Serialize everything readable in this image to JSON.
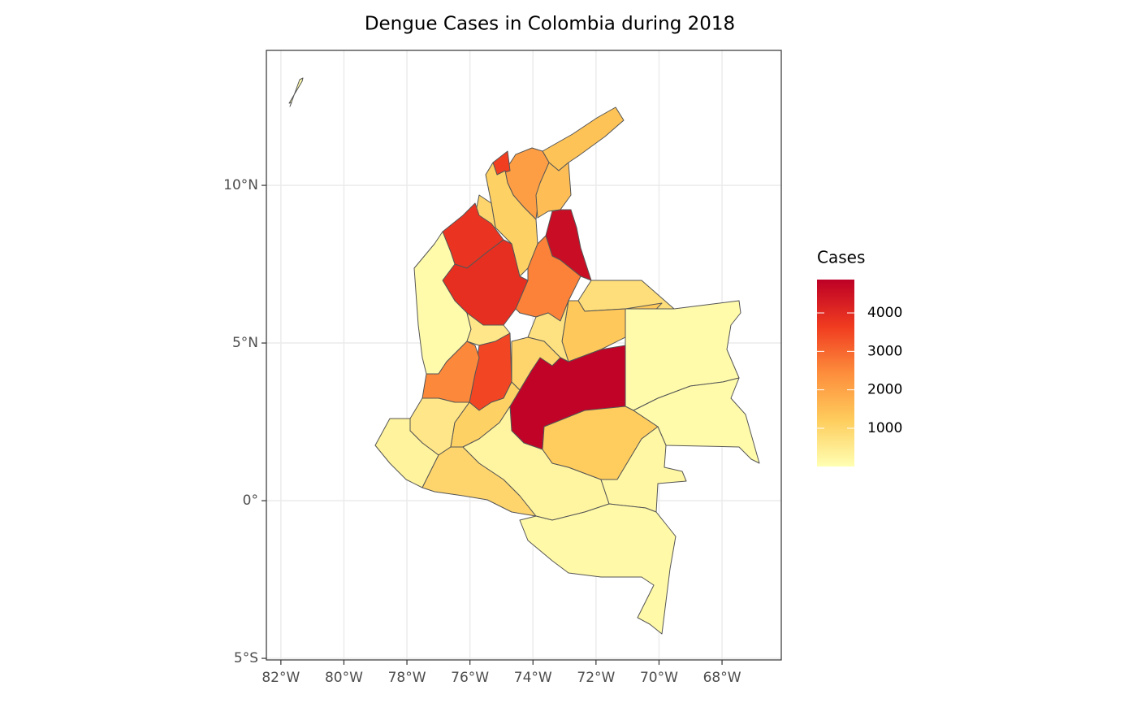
{
  "chart_data": {
    "type": "choropleth",
    "title": "Dengue Cases in Colombia during 2018",
    "xlim": [
      -82.46,
      -66.12
    ],
    "ylim": [
      -5.05,
      14.28
    ],
    "xticks": [
      {
        "value": -82,
        "label": "82°W"
      },
      {
        "value": -80,
        "label": "80°W"
      },
      {
        "value": -78,
        "label": "78°W"
      },
      {
        "value": -76,
        "label": "76°W"
      },
      {
        "value": -74,
        "label": "74°W"
      },
      {
        "value": -72,
        "label": "72°W"
      },
      {
        "value": -70,
        "label": "70°W"
      },
      {
        "value": -68,
        "label": "68°W"
      }
    ],
    "yticks": [
      {
        "value": -5,
        "label": "5°S"
      },
      {
        "value": 0,
        "label": "0°"
      },
      {
        "value": 5,
        "label": "5°N"
      },
      {
        "value": 10,
        "label": "10°N"
      }
    ],
    "grid": true,
    "legend_title": "Cases",
    "colorbar_lim": [
      6,
      4867
    ],
    "colorbar_ticks": [
      1000,
      2000,
      3000,
      4000
    ],
    "colors": [
      "#ffffb2",
      "#fecc5c",
      "#fd8d3c",
      "#f03b20",
      "#bd0026"
    ],
    "values": [
      1400,
      2100,
      3600,
      1500,
      1100,
      1000,
      3800,
      3900,
      4600,
      2600,
      800,
      1300,
      100,
      700,
      1000,
      4800,
      100,
      600,
      3500,
      2500,
      600,
      300,
      1100,
      1000,
      250,
      1200,
      100,
      200,
      150,
      100
    ]
  }
}
